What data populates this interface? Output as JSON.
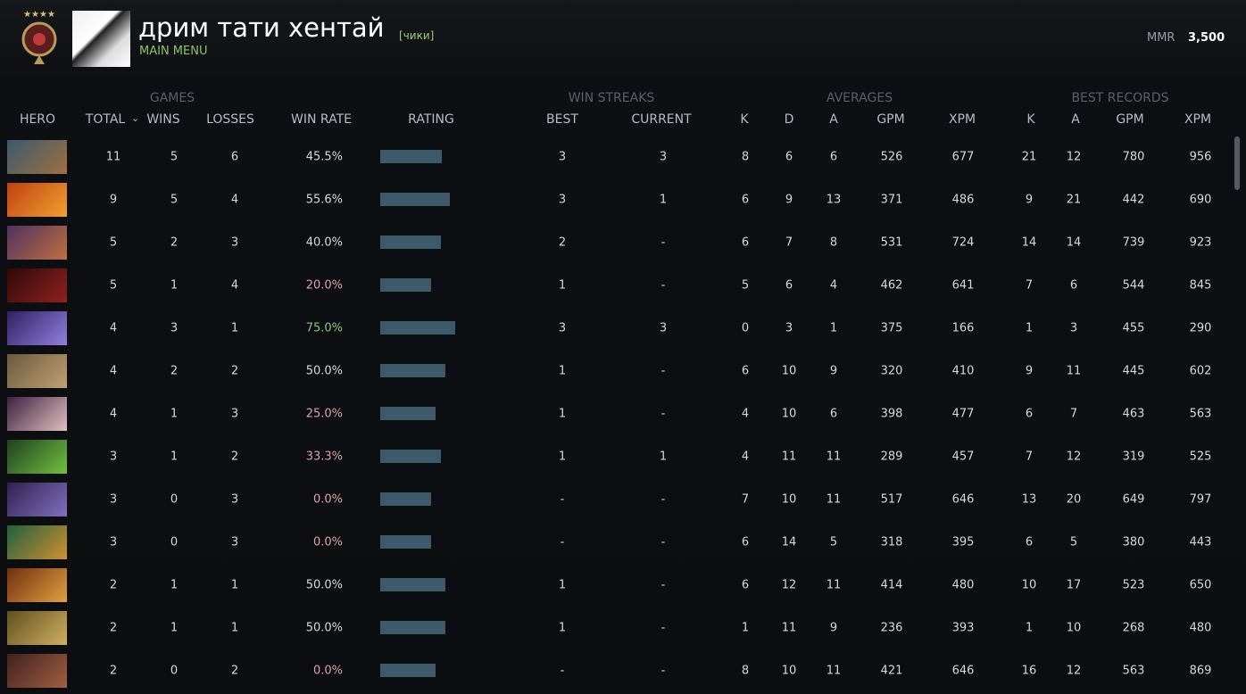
{
  "header": {
    "player_name": "дрим тати хентай",
    "tag": "[чики]",
    "menu_link": "MAIN MENU",
    "mmr_label": "MMR",
    "mmr_value": "3,500"
  },
  "table": {
    "groups": {
      "games": "GAMES",
      "win_streaks": "WIN STREAKS",
      "averages": "AVERAGES",
      "best_records": "BEST RECORDS"
    },
    "columns": {
      "hero": "HERO",
      "total": "TOTAL",
      "wins": "WINS",
      "losses": "LOSSES",
      "winrate": "WIN RATE",
      "rating": "RATING",
      "best": "BEST",
      "current": "CURRENT",
      "k": "K",
      "d": "D",
      "a": "A",
      "gpm": "GPM",
      "xpm": "XPM",
      "best_k": "K",
      "best_a": "A",
      "best_gpm": "GPM",
      "best_xpm": "XPM"
    },
    "rows": [
      {
        "total": 11,
        "wins": 5,
        "losses": 6,
        "winrate": "45.5%",
        "winrate_color": "#d8d8d8",
        "rating": 69,
        "best": 3,
        "current": 3,
        "k": 8,
        "d": 6,
        "a": 6,
        "gpm": 526,
        "xpm": 677,
        "best_k": 21,
        "best_a": 12,
        "best_gpm": 780,
        "best_xpm": 956
      },
      {
        "total": 9,
        "wins": 5,
        "losses": 4,
        "winrate": "55.6%",
        "winrate_color": "#d8d8d8",
        "rating": 78,
        "best": 3,
        "current": 1,
        "k": 6,
        "d": 9,
        "a": 13,
        "gpm": 371,
        "xpm": 486,
        "best_k": 9,
        "best_a": 21,
        "best_gpm": 442,
        "best_xpm": 690
      },
      {
        "total": 5,
        "wins": 2,
        "losses": 3,
        "winrate": "40.0%",
        "winrate_color": "#d8d8d8",
        "rating": 68,
        "best": 2,
        "current": "-",
        "k": 6,
        "d": 7,
        "a": 8,
        "gpm": 531,
        "xpm": 724,
        "best_k": 14,
        "best_a": 14,
        "best_gpm": 739,
        "best_xpm": 923
      },
      {
        "total": 5,
        "wins": 1,
        "losses": 4,
        "winrate": "20.0%",
        "winrate_color": "#d9a3a3",
        "rating": 57,
        "best": 1,
        "current": "-",
        "k": 5,
        "d": 6,
        "a": 4,
        "gpm": 462,
        "xpm": 641,
        "best_k": 7,
        "best_a": 6,
        "best_gpm": 544,
        "best_xpm": 845
      },
      {
        "total": 4,
        "wins": 3,
        "losses": 1,
        "winrate": "75.0%",
        "winrate_color": "#86c57f",
        "rating": 84,
        "best": 3,
        "current": 3,
        "k": 0,
        "d": 3,
        "a": 1,
        "gpm": 375,
        "xpm": 166,
        "best_k": 1,
        "best_a": 3,
        "best_gpm": 455,
        "best_xpm": 290
      },
      {
        "total": 4,
        "wins": 2,
        "losses": 2,
        "winrate": "50.0%",
        "winrate_color": "#d8d8d8",
        "rating": 73,
        "best": 1,
        "current": "-",
        "k": 6,
        "d": 10,
        "a": 9,
        "gpm": 320,
        "xpm": 410,
        "best_k": 9,
        "best_a": 11,
        "best_gpm": 445,
        "best_xpm": 602
      },
      {
        "total": 4,
        "wins": 1,
        "losses": 3,
        "winrate": "25.0%",
        "winrate_color": "#d9a3a3",
        "rating": 62,
        "best": 1,
        "current": "-",
        "k": 4,
        "d": 10,
        "a": 6,
        "gpm": 398,
        "xpm": 477,
        "best_k": 6,
        "best_a": 7,
        "best_gpm": 463,
        "best_xpm": 563
      },
      {
        "total": 3,
        "wins": 1,
        "losses": 2,
        "winrate": "33.3%",
        "winrate_color": "#d9a3a3",
        "rating": 68,
        "best": 1,
        "current": 1,
        "k": 4,
        "d": 11,
        "a": 11,
        "gpm": 289,
        "xpm": 457,
        "best_k": 7,
        "best_a": 12,
        "best_gpm": 319,
        "best_xpm": 525
      },
      {
        "total": 3,
        "wins": 0,
        "losses": 3,
        "winrate": "0.0%",
        "winrate_color": "#d9a3a3",
        "rating": 57,
        "best": "-",
        "current": "-",
        "k": 7,
        "d": 10,
        "a": 11,
        "gpm": 517,
        "xpm": 646,
        "best_k": 13,
        "best_a": 20,
        "best_gpm": 649,
        "best_xpm": 797
      },
      {
        "total": 3,
        "wins": 0,
        "losses": 3,
        "winrate": "0.0%",
        "winrate_color": "#d9a3a3",
        "rating": 57,
        "best": "-",
        "current": "-",
        "k": 6,
        "d": 14,
        "a": 5,
        "gpm": 318,
        "xpm": 395,
        "best_k": 6,
        "best_a": 5,
        "best_gpm": 380,
        "best_xpm": 443
      },
      {
        "total": 2,
        "wins": 1,
        "losses": 1,
        "winrate": "50.0%",
        "winrate_color": "#d8d8d8",
        "rating": 73,
        "best": 1,
        "current": "-",
        "k": 6,
        "d": 12,
        "a": 11,
        "gpm": 414,
        "xpm": 480,
        "best_k": 10,
        "best_a": 17,
        "best_gpm": 523,
        "best_xpm": 650
      },
      {
        "total": 2,
        "wins": 1,
        "losses": 1,
        "winrate": "50.0%",
        "winrate_color": "#d8d8d8",
        "rating": 73,
        "best": 1,
        "current": "-",
        "k": 1,
        "d": 11,
        "a": 9,
        "gpm": 236,
        "xpm": 393,
        "best_k": 1,
        "best_a": 10,
        "best_gpm": 268,
        "best_xpm": 480
      },
      {
        "total": 2,
        "wins": 0,
        "losses": 2,
        "winrate": "0.0%",
        "winrate_color": "#d9a3a3",
        "rating": 62,
        "best": "-",
        "current": "-",
        "k": 8,
        "d": 10,
        "a": 11,
        "gpm": 421,
        "xpm": 646,
        "best_k": 16,
        "best_a": 12,
        "best_gpm": 563,
        "best_xpm": 869
      }
    ]
  }
}
